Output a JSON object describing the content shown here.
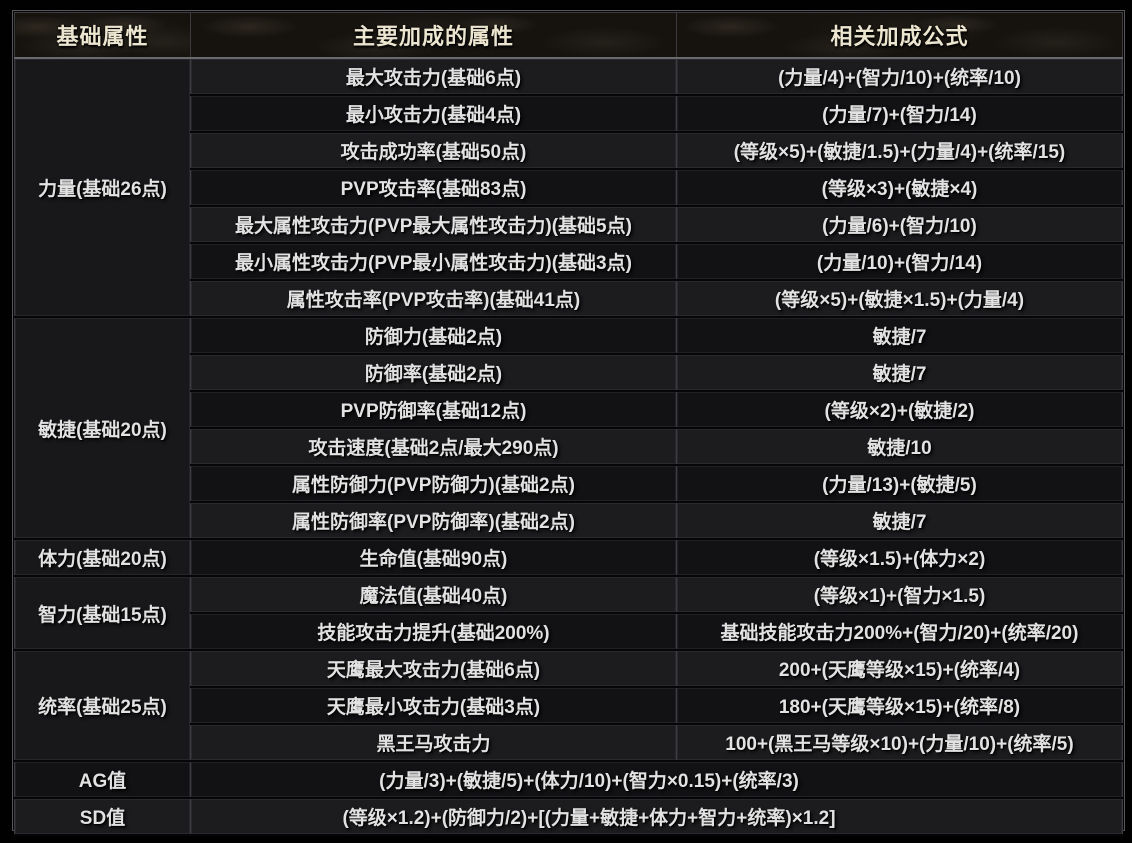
{
  "theme": {
    "page_bg": "#010101",
    "frame_border": "#55555a",
    "grid_line": "#3c3c40",
    "gap_line": "#060608",
    "header_bg": "#16130f",
    "header_text": "#ece5cf",
    "body_text": "#e2e2e2",
    "row_light": "#1c1b1e",
    "row_dark": "#121114",
    "attr_cell_bg": "#18171a"
  },
  "table": {
    "headers": [
      "基础属性",
      "主要加成的属性",
      "相关加成公式"
    ],
    "groups": [
      {
        "attr": "力量(基础26点)",
        "rows": [
          {
            "stat": "最大攻击力(基础6点)",
            "formula": "(力量/4)+(智力/10)+(统率/10)"
          },
          {
            "stat": "最小攻击力(基础4点)",
            "formula": "(力量/7)+(智力/14)"
          },
          {
            "stat": "攻击成功率(基础50点)",
            "formula": "(等级×5)+(敏捷/1.5)+(力量/4)+(统率/15)"
          },
          {
            "stat": "PVP攻击率(基础83点)",
            "formula": "(等级×3)+(敏捷×4)"
          },
          {
            "stat": "最大属性攻击力(PVP最大属性攻击力)(基础5点)",
            "formula": "(力量/6)+(智力/10)"
          },
          {
            "stat": "最小属性攻击力(PVP最小属性攻击力)(基础3点)",
            "formula": "(力量/10)+(智力/14)"
          },
          {
            "stat": "属性攻击率(PVP攻击率)(基础41点)",
            "formula": "(等级×5)+(敏捷×1.5)+(力量/4)"
          }
        ]
      },
      {
        "attr": "敏捷(基础20点)",
        "rows": [
          {
            "stat": "防御力(基础2点)",
            "formula": "敏捷/7"
          },
          {
            "stat": "防御率(基础2点)",
            "formula": "敏捷/7"
          },
          {
            "stat": "PVP防御率(基础12点)",
            "formula": "(等级×2)+(敏捷/2)"
          },
          {
            "stat": "攻击速度(基础2点/最大290点)",
            "formula": "敏捷/10"
          },
          {
            "stat": "属性防御力(PVP防御力)(基础2点)",
            "formula": "(力量/13)+(敏捷/5)"
          },
          {
            "stat": "属性防御率(PVP防御率)(基础2点)",
            "formula": "敏捷/7"
          }
        ]
      },
      {
        "attr": "体力(基础20点)",
        "rows": [
          {
            "stat": "生命值(基础90点)",
            "formula": "(等级×1.5)+(体力×2)"
          }
        ]
      },
      {
        "attr": "智力(基础15点)",
        "rows": [
          {
            "stat": "魔法值(基础40点)",
            "formula": "(等级×1)+(智力×1.5)"
          },
          {
            "stat": "技能攻击力提升(基础200%)",
            "formula": "基础技能攻击力200%+(智力/20)+(统率/20)"
          }
        ]
      },
      {
        "attr": "统率(基础25点)",
        "rows": [
          {
            "stat": "天鹰最大攻击力(基础6点)",
            "formula": "200+(天鹰等级×15)+(统率/4)"
          },
          {
            "stat": "天鹰最小攻击力(基础3点)",
            "formula": "180+(天鹰等级×15)+(统率/8)"
          },
          {
            "stat": "黑王马攻击力",
            "formula": "100+(黑王马等级×10)+(力量/10)+(统率/5)"
          }
        ]
      }
    ],
    "summary_rows": [
      {
        "attr": "AG值",
        "formula": "(力量/3)+(敏捷/5)+(体力/10)+(智力×0.15)+(统率/3)"
      },
      {
        "attr": "SD值",
        "formula": "(等级×1.2)+(防御力/2)+[(力量+敏捷+体力+智力+统率)×1.2]"
      }
    ]
  }
}
